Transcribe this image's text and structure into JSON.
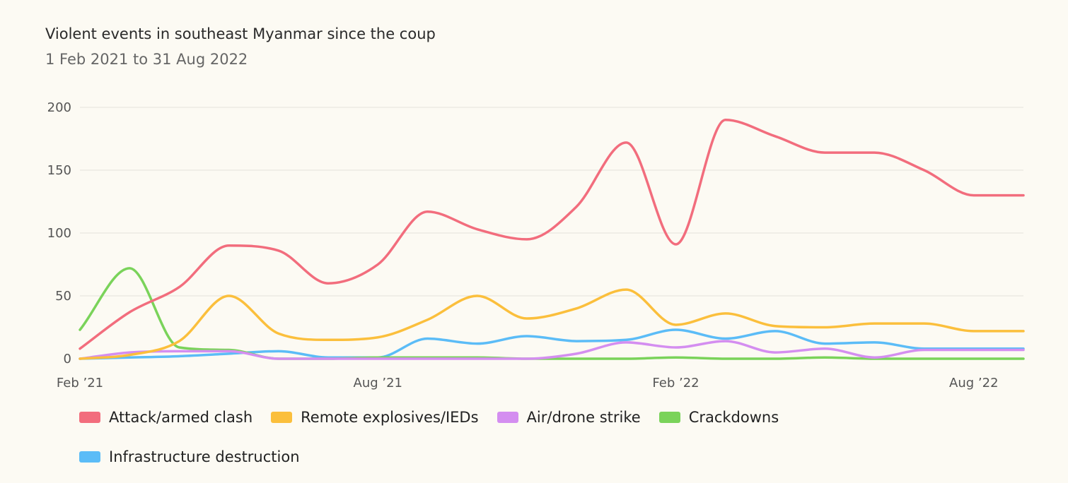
{
  "chart_data": {
    "type": "line",
    "title": "Violent events in southeast Myanmar since the coup",
    "subtitle": "1 Feb 2021 to 31 Aug 2022",
    "xlabel": "",
    "ylabel": "",
    "ylim": [
      0,
      200
    ],
    "yticks": [
      0,
      50,
      100,
      150,
      200
    ],
    "xlim": [
      0,
      19
    ],
    "xticks": [
      {
        "x": 0,
        "label": "Feb ’21"
      },
      {
        "x": 6,
        "label": "Aug ’21"
      },
      {
        "x": 12,
        "label": "Feb ’22"
      },
      {
        "x": 18,
        "label": "Aug ’22"
      }
    ],
    "x": [
      0,
      1,
      2,
      3,
      4,
      5,
      6,
      7,
      8,
      9,
      10,
      11,
      12,
      13,
      14,
      15,
      16,
      17,
      18,
      19
    ],
    "grid": true,
    "legend_position": "bottom",
    "series": [
      {
        "name": "Attack/armed clash",
        "color": "#f26d7d",
        "values": [
          8,
          37,
          57,
          90,
          86,
          60,
          75,
          117,
          103,
          95,
          121,
          172,
          91,
          190,
          177,
          164,
          164,
          150,
          130,
          130
        ]
      },
      {
        "name": "Remote explosives/IEDs",
        "color": "#fbbf3c",
        "values": [
          0,
          3,
          14,
          50,
          20,
          15,
          17,
          31,
          50,
          32,
          40,
          55,
          27,
          36,
          26,
          25,
          28,
          28,
          22,
          22
        ]
      },
      {
        "name": "Air/drone strike",
        "color": "#d48ef0",
        "values": [
          0,
          5,
          6,
          6,
          0,
          0,
          0,
          0,
          0,
          0,
          4,
          13,
          9,
          14,
          5,
          8,
          1,
          7,
          7,
          7
        ]
      },
      {
        "name": "Crackdowns",
        "color": "#7ad35a",
        "values": [
          23,
          72,
          9,
          7,
          0,
          0,
          1,
          1,
          1,
          0,
          0,
          0,
          1,
          0,
          0,
          1,
          0,
          0,
          0,
          0
        ]
      },
      {
        "name": "Infrastructure destruction",
        "color": "#5bbcf7",
        "values": [
          0,
          1,
          2,
          4,
          6,
          1,
          1,
          16,
          12,
          18,
          14,
          15,
          23,
          16,
          22,
          12,
          13,
          8,
          8,
          8
        ]
      }
    ]
  }
}
